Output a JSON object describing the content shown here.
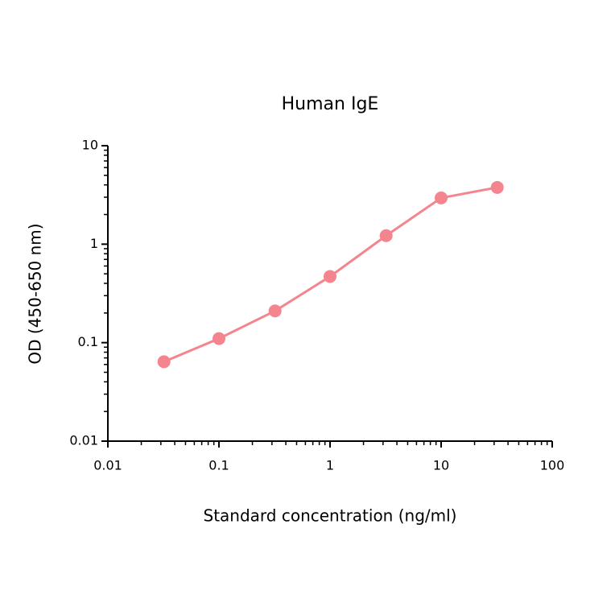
{
  "chart_data": {
    "type": "line",
    "title": "Human IgE",
    "x_label": "Standard concentration (ng/ml)",
    "y_label": "OD (450-650 nm)",
    "x": [
      0.032,
      0.1,
      0.32,
      1,
      3.2,
      10,
      32
    ],
    "series": [
      {
        "name": "Human IgE",
        "color": "#f4858e",
        "values": [
          0.064,
          0.11,
          0.21,
          0.47,
          1.22,
          2.95,
          3.77
        ]
      }
    ],
    "xlim": [
      0.01,
      100
    ],
    "xticks": [
      0.01,
      0.1,
      1,
      10,
      100
    ],
    "ylim": [
      0.01,
      10
    ],
    "yticks": [
      0.01,
      0.1,
      1,
      10
    ],
    "xscale": "log",
    "yscale": "log",
    "grid": false
  }
}
